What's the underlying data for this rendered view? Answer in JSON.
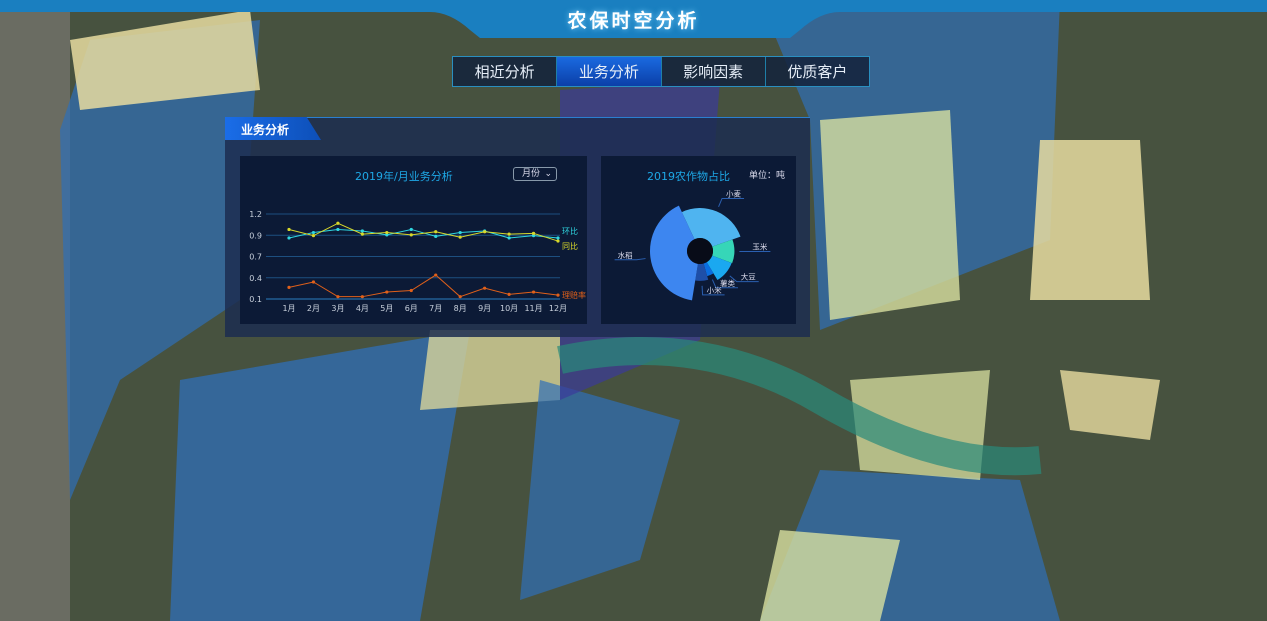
{
  "header": {
    "title": "农保时空分析"
  },
  "tabs": [
    {
      "label": "相近分析",
      "active": false
    },
    {
      "label": "业务分析",
      "active": true
    },
    {
      "label": "影响因素",
      "active": false
    },
    {
      "label": "优质客户",
      "active": false
    }
  ],
  "panel": {
    "title": "业务分析"
  },
  "line_chart": {
    "title": "2019年/月业务分析",
    "select": {
      "value": "月份",
      "icon": "chevron-down-icon"
    }
  },
  "pie_chart": {
    "title": "2019农作物占比",
    "unit": "单位：吨"
  },
  "colors": {
    "accent": "#1ea8e6",
    "huanbi": "#2fd6e0",
    "tongbi": "#d8d82a",
    "lipei": "#e0601a"
  },
  "chart_data": [
    {
      "type": "line",
      "title": "2019年/月业务分析",
      "categories": [
        "1月",
        "2月",
        "3月",
        "4月",
        "5月",
        "6月",
        "7月",
        "8月",
        "9月",
        "10月",
        "11月",
        "12月"
      ],
      "ytick_labels": [
        "0.1",
        "0.4",
        "0.7",
        "0.9",
        "1.2"
      ],
      "ylim": [
        0.1,
        1.2
      ],
      "grid": true,
      "legend": "right-end labels",
      "series": [
        {
          "name": "环比",
          "values": [
            0.89,
            0.96,
            1.0,
            0.98,
            0.93,
            1.0,
            0.91,
            0.96,
            0.98,
            0.89,
            0.92,
            0.89
          ]
        },
        {
          "name": "同比",
          "values": [
            1.0,
            0.92,
            1.08,
            0.94,
            0.96,
            0.93,
            0.97,
            0.9,
            0.97,
            0.94,
            0.95,
            0.85
          ]
        },
        {
          "name": "理赔率",
          "values": [
            0.25,
            0.32,
            0.13,
            0.13,
            0.19,
            0.21,
            0.41,
            0.13,
            0.24,
            0.16,
            0.19,
            0.15
          ]
        }
      ]
    },
    {
      "type": "pie",
      "rose": true,
      "title": "2019农作物占比",
      "unit": "单位：吨",
      "categories": [
        "小麦",
        "玉米",
        "大豆",
        "薯类",
        "小米",
        "水稻"
      ],
      "values": [
        95,
        40,
        38,
        15,
        25,
        145
      ],
      "colors": [
        "#4fb4f0",
        "#36d6b8",
        "#1aa8f0",
        "#0a6ee0",
        "#1e4fa8",
        "#3d86f0"
      ]
    }
  ]
}
